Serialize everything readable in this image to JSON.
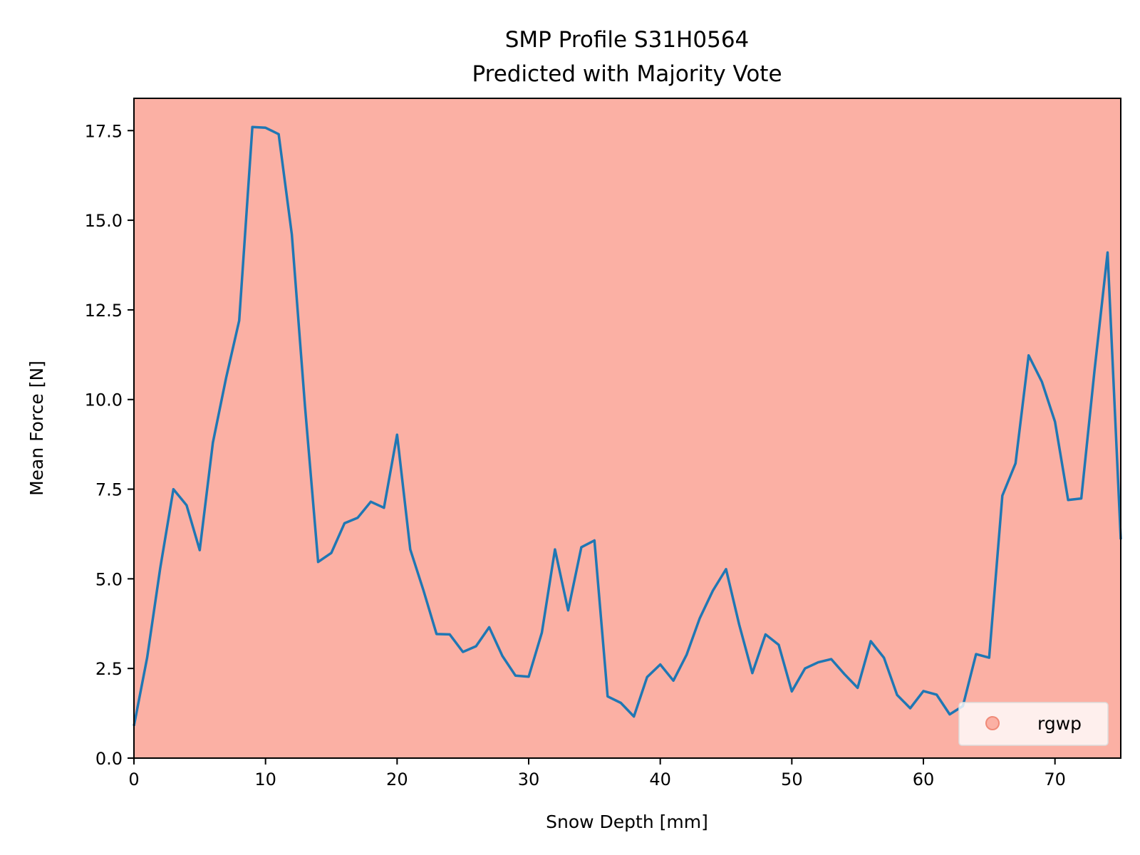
{
  "chart_data": {
    "type": "line",
    "title": "SMP Profile S31H0564",
    "subtitle": "Predicted with Majority Vote",
    "xlabel": "Snow Depth [mm]",
    "ylabel": "Mean Force [N]",
    "xlim": [
      0,
      75
    ],
    "ylim": [
      0,
      18.4
    ],
    "xticks": [
      0,
      10,
      20,
      30,
      40,
      50,
      60,
      70
    ],
    "xtick_labels": [
      "0",
      "10",
      "20",
      "30",
      "40",
      "50",
      "60",
      "70"
    ],
    "yticks": [
      0,
      2.5,
      5,
      7.5,
      10,
      12.5,
      15,
      17.5
    ],
    "ytick_labels": [
      "0.0",
      "2.5",
      "5.0",
      "7.5",
      "10.0",
      "12.5",
      "15.0",
      "17.5"
    ],
    "grid": false,
    "legend_position": "bottom-right",
    "background_band": {
      "label": "rgwp",
      "color": "#fbb0a4"
    },
    "series": [
      {
        "color": "#1f77b4",
        "x": [
          0,
          1,
          2,
          3,
          4,
          5,
          6,
          7,
          8,
          9,
          10,
          11,
          12,
          13,
          14,
          15,
          16,
          17,
          18,
          19,
          20,
          21,
          22,
          23,
          24,
          25,
          26,
          27,
          28,
          29,
          30,
          31,
          32,
          33,
          34,
          35,
          36,
          37,
          38,
          39,
          40,
          41,
          42,
          43,
          44,
          45,
          46,
          47,
          48,
          49,
          50,
          51,
          52,
          53,
          54,
          55,
          56,
          57,
          58,
          59,
          60,
          61,
          62,
          63,
          64,
          65,
          66,
          67,
          68,
          69,
          70,
          71,
          72,
          73,
          74,
          75
        ],
        "y": [
          0.9,
          2.8,
          5.3,
          7.5,
          7.05,
          5.8,
          8.8,
          10.6,
          12.2,
          17.6,
          17.58,
          17.4,
          14.6,
          9.8,
          5.47,
          5.72,
          6.55,
          6.7,
          7.15,
          6.98,
          9.02,
          5.82,
          4.68,
          3.46,
          3.45,
          2.96,
          3.12,
          3.65,
          2.85,
          2.3,
          2.27,
          3.5,
          5.82,
          4.12,
          5.88,
          6.07,
          1.72,
          1.54,
          1.16,
          2.26,
          2.61,
          2.16,
          2.88,
          3.9,
          4.67,
          5.27,
          3.72,
          2.37,
          3.45,
          3.16,
          1.86,
          2.5,
          2.67,
          2.76,
          2.34,
          1.96,
          3.26,
          2.8,
          1.76,
          1.39,
          1.87,
          1.77,
          1.22,
          1.45,
          2.9,
          2.8,
          7.32,
          8.22,
          11.23,
          10.5,
          9.38,
          7.2,
          7.24,
          10.8,
          14.1,
          6.1
        ]
      }
    ]
  }
}
